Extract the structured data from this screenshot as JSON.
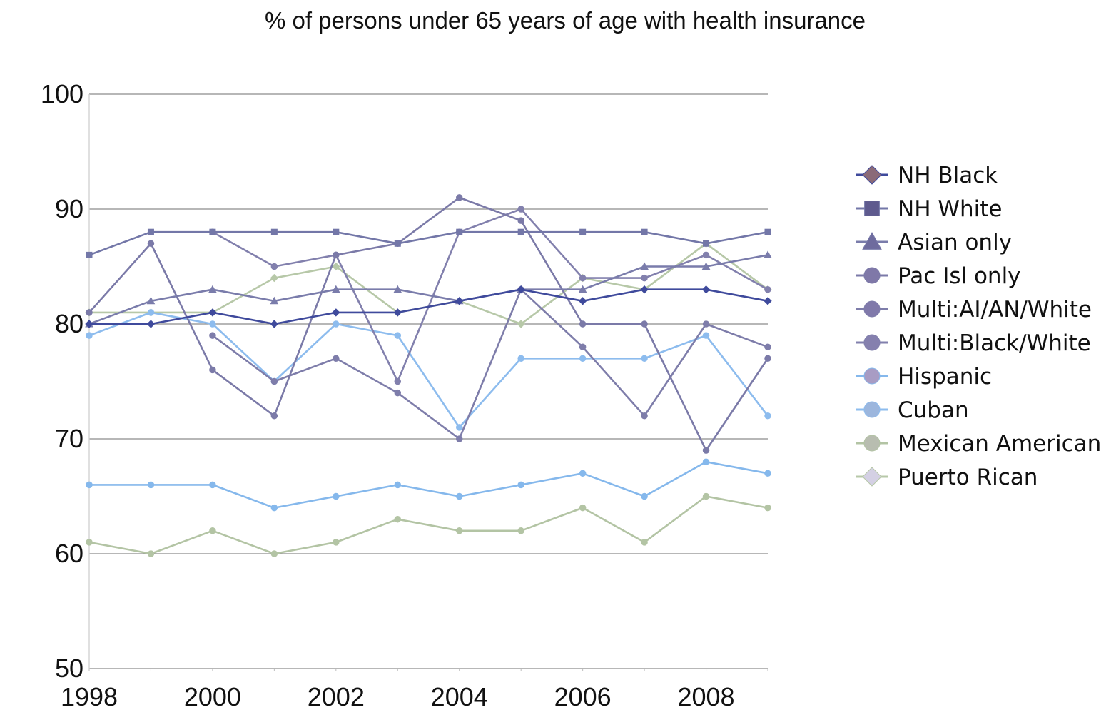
{
  "chart_data": {
    "type": "line",
    "title": "% of persons under 65 years of age with health insurance",
    "xlabel": "",
    "ylabel": "",
    "xlim": [
      1998,
      2009
    ],
    "ylim": [
      50,
      100
    ],
    "y_ticks": [
      "100",
      "90",
      "80",
      "70",
      "60",
      "50"
    ],
    "x_ticks": [
      "1998",
      "2000",
      "2002",
      "2004",
      "2006",
      "2008"
    ],
    "grid": true,
    "legend_position": "right",
    "x": [
      1998,
      1999,
      2000,
      2001,
      2002,
      2003,
      2004,
      2005,
      2006,
      2007,
      2008,
      2009
    ],
    "series": [
      {
        "name": "NH Black",
        "color": "#3f4a9c",
        "marker": "diamond",
        "legend_fill": "#8a6a78",
        "values": [
          80,
          80,
          81,
          80,
          81,
          81,
          82,
          83,
          82,
          83,
          83,
          82
        ]
      },
      {
        "name": "NH White",
        "color": "#7377a8",
        "marker": "square",
        "legend_fill": "#5e5a8e",
        "values": [
          86,
          88,
          88,
          88,
          88,
          87,
          88,
          88,
          88,
          88,
          87,
          88
        ]
      },
      {
        "name": "Asian only",
        "color": "#7a7cab",
        "marker": "triangle",
        "legend_fill": "#6e6b9e",
        "values": [
          80,
          82,
          83,
          82,
          83,
          83,
          82,
          83,
          83,
          85,
          85,
          86
        ]
      },
      {
        "name": "Pac Isl only",
        "color": "#7b7aa8",
        "marker": "circle",
        "legend_fill": "#7f78a8",
        "values": [
          81,
          87,
          76,
          72,
          86,
          87,
          91,
          89,
          80,
          80,
          69,
          77
        ]
      },
      {
        "name": "Multi:AI/AN/White",
        "color": "#7e7daa",
        "marker": "circle",
        "legend_fill": "#8079aa",
        "values": [
          null,
          null,
          79,
          75,
          77,
          74,
          70,
          83,
          78,
          72,
          80,
          78
        ]
      },
      {
        "name": "Multi:Black/White",
        "color": "#8280ad",
        "marker": "circle",
        "legend_fill": "#8580ae",
        "values": [
          null,
          null,
          88,
          85,
          86,
          75,
          88,
          90,
          84,
          84,
          86,
          83
        ]
      },
      {
        "name": "Hispanic",
        "color": "#85b8ec",
        "marker": "circle",
        "legend_fill": "#a89cc4",
        "values": [
          66,
          66,
          66,
          64,
          65,
          66,
          65,
          66,
          67,
          65,
          68,
          67
        ]
      },
      {
        "name": "Cuban",
        "color": "#8dbcee",
        "marker": "circle",
        "legend_fill": "#9cb6dd",
        "values": [
          79,
          81,
          80,
          75,
          80,
          79,
          71,
          77,
          77,
          77,
          79,
          72
        ]
      },
      {
        "name": "Mexican American",
        "color": "#b3c4a4",
        "marker": "circle",
        "legend_fill": "#b8bdb0",
        "values": [
          61,
          60,
          62,
          60,
          61,
          63,
          62,
          62,
          64,
          61,
          65,
          64
        ]
      },
      {
        "name": "Puerto Rican",
        "color": "#b7c8a8",
        "marker": "diamond",
        "legend_fill": "#d4d0e4",
        "values": [
          81,
          81,
          81,
          84,
          85,
          81,
          82,
          80,
          84,
          83,
          87,
          83
        ]
      }
    ]
  }
}
